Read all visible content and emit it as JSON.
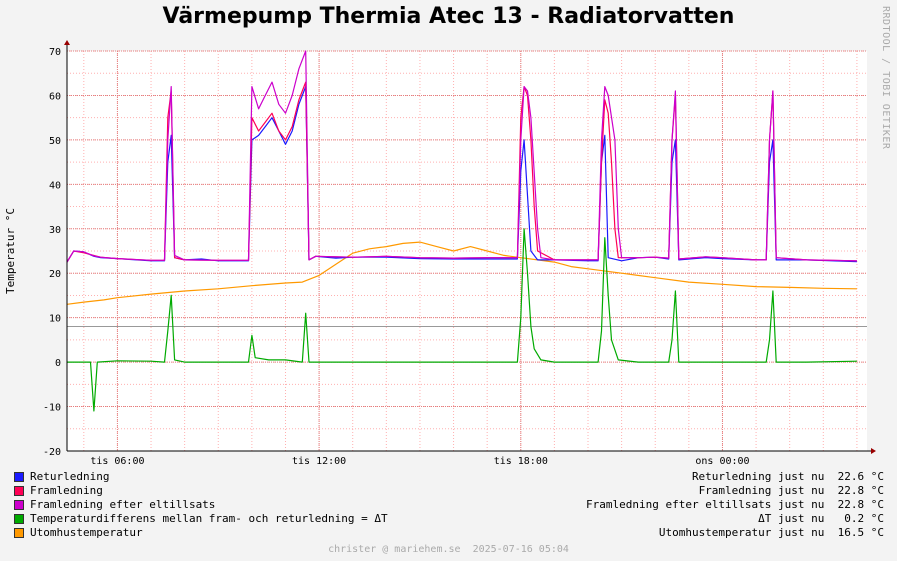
{
  "chart_data": {
    "type": "line",
    "title": "Värmepump Thermia Atec 13 - Radiatorvatten",
    "ylabel": "Temperatur °C",
    "xlabel": "",
    "ylim": [
      -20,
      70
    ],
    "yticks": [
      -20,
      -10,
      0,
      10,
      20,
      30,
      40,
      50,
      60,
      70
    ],
    "xlim_hours": [
      4.5,
      28.3
    ],
    "xticks": [
      {
        "label": "tis 06:00",
        "hour": 6
      },
      {
        "label": "tis 12:00",
        "hour": 12
      },
      {
        "label": "tis 18:00",
        "hour": 18
      },
      {
        "label": "ons 00:00",
        "hour": 24
      }
    ],
    "grid": true,
    "reference_line": 8,
    "series": [
      {
        "name": "Returledning",
        "color": "#1a1aff",
        "points": [
          [
            4.5,
            22.5
          ],
          [
            4.7,
            25
          ],
          [
            5.0,
            24.8
          ],
          [
            5.3,
            23.8
          ],
          [
            5.5,
            23.5
          ],
          [
            6.0,
            23.3
          ],
          [
            7.0,
            22.8
          ],
          [
            7.4,
            22.8
          ],
          [
            7.5,
            45
          ],
          [
            7.6,
            51
          ],
          [
            7.7,
            23.5
          ],
          [
            8.0,
            23
          ],
          [
            8.5,
            23.2
          ],
          [
            9.0,
            22.8
          ],
          [
            9.9,
            22.8
          ],
          [
            10.0,
            50
          ],
          [
            10.2,
            51
          ],
          [
            10.4,
            53
          ],
          [
            10.6,
            55
          ],
          [
            10.8,
            52
          ],
          [
            11.0,
            49
          ],
          [
            11.2,
            52
          ],
          [
            11.4,
            58
          ],
          [
            11.6,
            62
          ],
          [
            11.7,
            23
          ],
          [
            11.9,
            23.8
          ],
          [
            12.5,
            23.4
          ],
          [
            13.0,
            23.6
          ],
          [
            14.0,
            23.6
          ],
          [
            15.0,
            23.3
          ],
          [
            16.0,
            23.2
          ],
          [
            17.0,
            23.2
          ],
          [
            17.9,
            23.2
          ],
          [
            18.0,
            43
          ],
          [
            18.1,
            50
          ],
          [
            18.3,
            25
          ],
          [
            18.5,
            23
          ],
          [
            19.0,
            23
          ],
          [
            20.0,
            22.8
          ],
          [
            20.3,
            22.8
          ],
          [
            20.4,
            45
          ],
          [
            20.5,
            51
          ],
          [
            20.6,
            23.5
          ],
          [
            21.0,
            22.8
          ],
          [
            21.5,
            23.5
          ],
          [
            22.0,
            23.6
          ],
          [
            22.4,
            23.2
          ],
          [
            22.5,
            45
          ],
          [
            22.6,
            50
          ],
          [
            22.7,
            23
          ],
          [
            23.5,
            23.5
          ],
          [
            24.0,
            23.3
          ],
          [
            25.0,
            23
          ],
          [
            25.3,
            23
          ],
          [
            25.4,
            45
          ],
          [
            25.5,
            50
          ],
          [
            25.6,
            23
          ],
          [
            26.5,
            23
          ],
          [
            28.0,
            22.6
          ]
        ]
      },
      {
        "name": "Framledning",
        "color": "#ff0055",
        "points": [
          [
            4.5,
            22.5
          ],
          [
            4.7,
            25
          ],
          [
            5.0,
            24.6
          ],
          [
            5.3,
            24
          ],
          [
            5.5,
            23.6
          ],
          [
            6.0,
            23.3
          ],
          [
            7.0,
            22.9
          ],
          [
            7.4,
            22.9
          ],
          [
            7.5,
            55
          ],
          [
            7.6,
            61
          ],
          [
            7.7,
            23.5
          ],
          [
            8.0,
            23
          ],
          [
            9.0,
            22.9
          ],
          [
            9.9,
            22.9
          ],
          [
            10.0,
            55
          ],
          [
            10.2,
            52
          ],
          [
            10.4,
            54
          ],
          [
            10.6,
            56
          ],
          [
            10.8,
            52
          ],
          [
            11.0,
            50
          ],
          [
            11.2,
            53
          ],
          [
            11.4,
            59
          ],
          [
            11.6,
            63
          ],
          [
            11.7,
            23
          ],
          [
            11.9,
            23.8
          ],
          [
            13.0,
            23.6
          ],
          [
            14.0,
            23.8
          ],
          [
            15.0,
            23.5
          ],
          [
            16.0,
            23.4
          ],
          [
            17.0,
            23.5
          ],
          [
            17.9,
            23.5
          ],
          [
            18.0,
            55
          ],
          [
            18.1,
            62
          ],
          [
            18.2,
            60
          ],
          [
            18.3,
            50
          ],
          [
            18.4,
            35
          ],
          [
            18.5,
            25
          ],
          [
            19.0,
            23
          ],
          [
            20.0,
            23
          ],
          [
            20.3,
            23
          ],
          [
            20.4,
            45
          ],
          [
            20.5,
            59
          ],
          [
            20.6,
            56
          ],
          [
            20.7,
            45
          ],
          [
            20.8,
            30
          ],
          [
            20.9,
            23.5
          ],
          [
            21.5,
            23.5
          ],
          [
            22.0,
            23.6
          ],
          [
            22.4,
            23.4
          ],
          [
            22.5,
            50
          ],
          [
            22.6,
            60
          ],
          [
            22.7,
            23.2
          ],
          [
            23.5,
            23.7
          ],
          [
            24.0,
            23.5
          ],
          [
            25.0,
            23
          ],
          [
            25.3,
            23
          ],
          [
            25.4,
            50
          ],
          [
            25.5,
            61
          ],
          [
            25.6,
            23.5
          ],
          [
            26.5,
            23
          ],
          [
            28.0,
            22.8
          ]
        ]
      },
      {
        "name": "Framledning efter eltillsats",
        "color": "#cc00cc",
        "points": [
          [
            4.5,
            22.5
          ],
          [
            4.7,
            25
          ],
          [
            5.0,
            24.8
          ],
          [
            5.3,
            23.9
          ],
          [
            5.5,
            23.6
          ],
          [
            6.0,
            23.3
          ],
          [
            7.0,
            22.9
          ],
          [
            7.4,
            22.9
          ],
          [
            7.5,
            50
          ],
          [
            7.6,
            62
          ],
          [
            7.7,
            24
          ],
          [
            8.0,
            23
          ],
          [
            9.0,
            22.9
          ],
          [
            9.9,
            22.9
          ],
          [
            10.0,
            62
          ],
          [
            10.2,
            57
          ],
          [
            10.4,
            60
          ],
          [
            10.6,
            63
          ],
          [
            10.8,
            58
          ],
          [
            11.0,
            56
          ],
          [
            11.2,
            60
          ],
          [
            11.4,
            66
          ],
          [
            11.6,
            70
          ],
          [
            11.7,
            23
          ],
          [
            11.9,
            23.8
          ],
          [
            13.0,
            23.6
          ],
          [
            14.0,
            23.8
          ],
          [
            15.0,
            23.5
          ],
          [
            16.0,
            23.4
          ],
          [
            17.0,
            23.5
          ],
          [
            17.9,
            23.5
          ],
          [
            18.0,
            50
          ],
          [
            18.1,
            62
          ],
          [
            18.2,
            61
          ],
          [
            18.3,
            55
          ],
          [
            18.5,
            30
          ],
          [
            18.6,
            23.5
          ],
          [
            19.0,
            23
          ],
          [
            20.0,
            23
          ],
          [
            20.3,
            23
          ],
          [
            20.4,
            50
          ],
          [
            20.5,
            62
          ],
          [
            20.6,
            60
          ],
          [
            20.8,
            50
          ],
          [
            20.9,
            30
          ],
          [
            21.0,
            23.5
          ],
          [
            21.5,
            23.5
          ],
          [
            22.0,
            23.6
          ],
          [
            22.4,
            23.4
          ],
          [
            22.5,
            50
          ],
          [
            22.6,
            61
          ],
          [
            22.7,
            23.2
          ],
          [
            23.5,
            23.7
          ],
          [
            24.0,
            23.5
          ],
          [
            25.0,
            23
          ],
          [
            25.3,
            23
          ],
          [
            25.4,
            50
          ],
          [
            25.5,
            61
          ],
          [
            25.6,
            23.5
          ],
          [
            26.5,
            23
          ],
          [
            28.0,
            22.8
          ]
        ]
      },
      {
        "name": "Temperaturdifferens mellan fram- och returledning = ΔT",
        "color": "#00aa00",
        "points": [
          [
            4.5,
            0
          ],
          [
            5.0,
            0
          ],
          [
            5.2,
            0
          ],
          [
            5.3,
            -11
          ],
          [
            5.4,
            0
          ],
          [
            6.0,
            0.3
          ],
          [
            7.0,
            0.2
          ],
          [
            7.4,
            0
          ],
          [
            7.5,
            7
          ],
          [
            7.6,
            15
          ],
          [
            7.7,
            0.5
          ],
          [
            8.0,
            0
          ],
          [
            9.0,
            0
          ],
          [
            9.9,
            0
          ],
          [
            10.0,
            6
          ],
          [
            10.1,
            1
          ],
          [
            10.5,
            0.5
          ],
          [
            11.0,
            0.5
          ],
          [
            11.5,
            0
          ],
          [
            11.6,
            11
          ],
          [
            11.7,
            0
          ],
          [
            12.0,
            0
          ],
          [
            13.0,
            0
          ],
          [
            14.0,
            0
          ],
          [
            16.0,
            0
          ],
          [
            17.9,
            0
          ],
          [
            18.0,
            10
          ],
          [
            18.1,
            30
          ],
          [
            18.2,
            20
          ],
          [
            18.3,
            8
          ],
          [
            18.4,
            3
          ],
          [
            18.6,
            0.5
          ],
          [
            19.0,
            0
          ],
          [
            20.3,
            0
          ],
          [
            20.4,
            7
          ],
          [
            20.5,
            28
          ],
          [
            20.6,
            15
          ],
          [
            20.7,
            5
          ],
          [
            20.9,
            0.5
          ],
          [
            21.5,
            0
          ],
          [
            22.4,
            0
          ],
          [
            22.5,
            5
          ],
          [
            22.6,
            16
          ],
          [
            22.7,
            0
          ],
          [
            23.5,
            0
          ],
          [
            25.3,
            0
          ],
          [
            25.4,
            5
          ],
          [
            25.5,
            16
          ],
          [
            25.6,
            0
          ],
          [
            26.5,
            0
          ],
          [
            28.0,
            0.2
          ]
        ]
      },
      {
        "name": "Utomhustemperatur",
        "color": "#ff9900",
        "points": [
          [
            4.5,
            13
          ],
          [
            5.0,
            13.5
          ],
          [
            5.6,
            14
          ],
          [
            6.0,
            14.5
          ],
          [
            7.0,
            15.3
          ],
          [
            8.0,
            16
          ],
          [
            9.0,
            16.5
          ],
          [
            10.0,
            17.2
          ],
          [
            11.0,
            17.8
          ],
          [
            11.5,
            18
          ],
          [
            12.0,
            19.5
          ],
          [
            12.5,
            22
          ],
          [
            13.0,
            24.5
          ],
          [
            13.5,
            25.5
          ],
          [
            14.0,
            26
          ],
          [
            14.5,
            26.7
          ],
          [
            15.0,
            27
          ],
          [
            15.5,
            26
          ],
          [
            16.0,
            25
          ],
          [
            16.5,
            26
          ],
          [
            17.0,
            25
          ],
          [
            17.5,
            24
          ],
          [
            18.0,
            23.5
          ],
          [
            18.5,
            23
          ],
          [
            19.0,
            22.5
          ],
          [
            19.5,
            21.5
          ],
          [
            20.0,
            21
          ],
          [
            21.0,
            20
          ],
          [
            22.0,
            19
          ],
          [
            23.0,
            18
          ],
          [
            24.0,
            17.5
          ],
          [
            25.0,
            17
          ],
          [
            26.0,
            16.8
          ],
          [
            27.0,
            16.6
          ],
          [
            28.0,
            16.5
          ]
        ]
      }
    ]
  },
  "legend": [
    {
      "name": "Returledning",
      "color": "#1a1aff",
      "value": "Returledning just nu  22.6 °C"
    },
    {
      "name": "Framledning",
      "color": "#ff0055",
      "value": "Framledning just nu  22.8 °C"
    },
    {
      "name": "Framledning efter eltillsats",
      "color": "#cc00cc",
      "value": "Framledning efter eltillsats just nu  22.8 °C"
    },
    {
      "name": "Temperaturdifferens mellan fram- och returledning = ΔT",
      "color": "#00aa00",
      "value": "ΔT just nu   0.2 °C"
    },
    {
      "name": "Utomhustemperatur",
      "color": "#ff9900",
      "value": "Utomhustemperatur just nu  16.5 °C"
    }
  ],
  "watermark": "RRDTOOL / TOBI OETIKER",
  "footer": "christer @ mariehem.se  2025-07-16 05:04"
}
